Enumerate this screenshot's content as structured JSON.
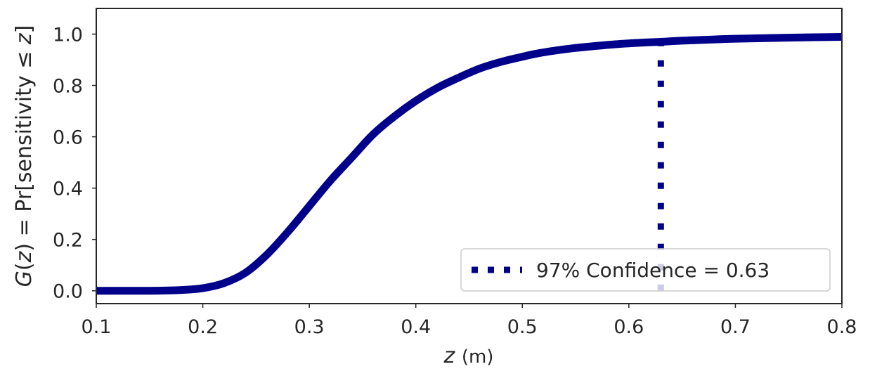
{
  "chart_data": {
    "type": "line",
    "xlabel_var": "z",
    "xlabel_unit": "(m)",
    "ylabel": {
      "prefix_var": "G",
      "arg_open": "(",
      "arg_var": "z",
      "arg_close": ")",
      "equals": " = Pr[sensitivity  ≤ ",
      "end_var": "z",
      "end": "]"
    },
    "xlim": [
      0.1,
      0.8
    ],
    "ylim": [
      -0.05,
      1.1
    ],
    "xticks": [
      0.1,
      0.2,
      0.3,
      0.4,
      0.5,
      0.6,
      0.7,
      0.8
    ],
    "xtick_labels": [
      "0.1",
      "0.2",
      "0.3",
      "0.4",
      "0.5",
      "0.6",
      "0.7",
      "0.8"
    ],
    "yticks": [
      0.0,
      0.2,
      0.4,
      0.6,
      0.8,
      1.0
    ],
    "ytick_labels": [
      "0.0",
      "0.2",
      "0.4",
      "0.6",
      "0.8",
      "1.0"
    ],
    "grid": false,
    "legend_position": "lower-right",
    "series": [
      {
        "style": "solid",
        "color": "#00008b",
        "x": [
          0.1,
          0.15,
          0.18,
          0.2,
          0.22,
          0.24,
          0.26,
          0.28,
          0.3,
          0.32,
          0.34,
          0.36,
          0.38,
          0.4,
          0.42,
          0.44,
          0.46,
          0.48,
          0.5,
          0.52,
          0.55,
          0.58,
          0.6,
          0.63,
          0.66,
          0.7,
          0.75,
          0.8
        ],
        "y": [
          0.0,
          0.0,
          0.003,
          0.01,
          0.03,
          0.07,
          0.14,
          0.23,
          0.33,
          0.43,
          0.52,
          0.61,
          0.68,
          0.74,
          0.79,
          0.83,
          0.866,
          0.892,
          0.912,
          0.929,
          0.946,
          0.958,
          0.964,
          0.97,
          0.976,
          0.982,
          0.986,
          0.989
        ]
      },
      {
        "name": "97% Confidence = 0.63",
        "style": "dotted",
        "color": "#00008b",
        "x": [
          0.63,
          0.63
        ],
        "y": [
          0.0,
          0.97
        ]
      }
    ]
  }
}
